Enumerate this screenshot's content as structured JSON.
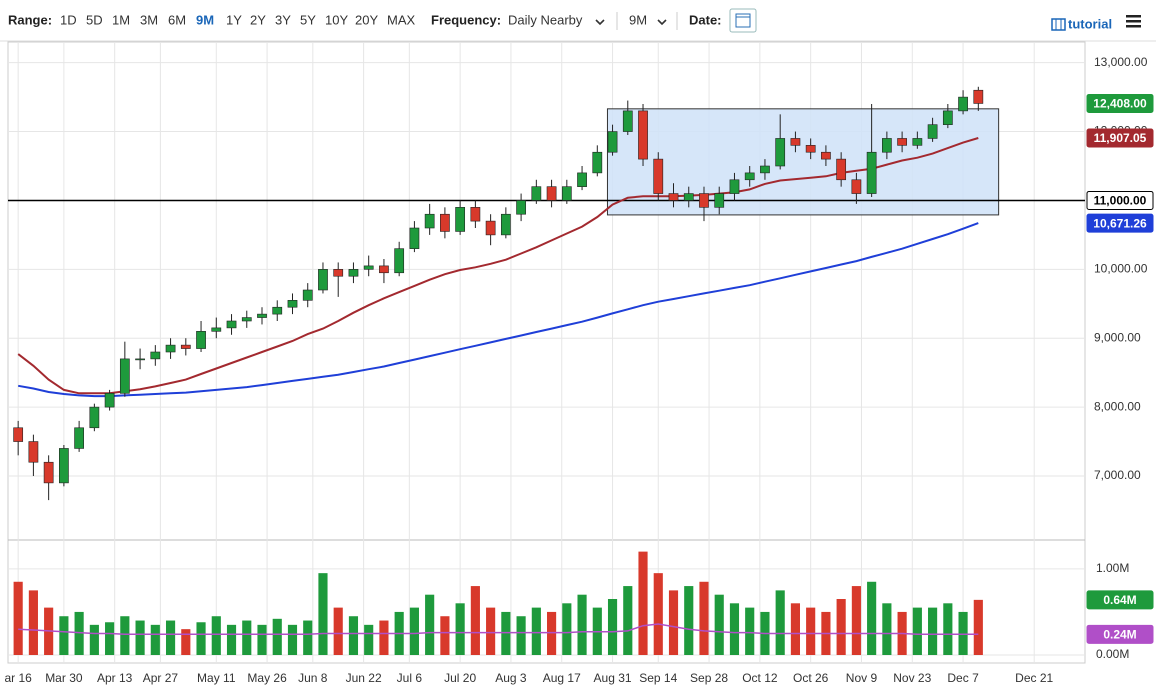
{
  "toolbar": {
    "range_label": "Range:",
    "ranges": [
      "1D",
      "5D",
      "1M",
      "3M",
      "6M",
      "9M",
      "1Y",
      "2Y",
      "3Y",
      "5Y",
      "10Y",
      "20Y",
      "MAX"
    ],
    "selected_range": 5,
    "frequency_label": "Frequency:",
    "frequency": "Daily Nearby",
    "period": "9M",
    "date_label": "Date:",
    "tutorial": "tutorial"
  },
  "chart_data": {
    "type": "candlestick",
    "x": [
      0,
      3,
      6,
      9,
      12,
      15,
      18,
      21,
      24,
      27,
      30,
      33,
      36,
      39,
      42,
      45,
      48,
      51,
      54,
      57,
      60,
      63,
      66,
      69,
      72,
      75,
      78,
      81,
      84,
      87,
      90,
      93,
      96,
      99,
      102,
      105,
      108,
      111,
      114,
      117,
      120,
      123,
      126,
      129,
      132,
      135,
      138,
      141,
      144,
      147,
      150,
      153,
      156,
      159,
      162,
      165,
      168,
      171,
      174,
      177,
      180,
      183,
      186,
      189
    ],
    "open": [
      7700,
      7500,
      7200,
      6900,
      7400,
      7700,
      8000,
      8200,
      8700,
      8700,
      8800,
      8900,
      8850,
      9100,
      9150,
      9250,
      9300,
      9350,
      9450,
      9550,
      9700,
      10000,
      9900,
      10000,
      10050,
      9950,
      10300,
      10600,
      10800,
      10550,
      10900,
      10700,
      10500,
      10800,
      11000,
      11200,
      11000,
      11200,
      11400,
      11700,
      12000,
      12300,
      11600,
      11100,
      11000,
      11100,
      10900,
      11100,
      11300,
      11400,
      11500,
      11900,
      11800,
      11700,
      11600,
      11300,
      11100,
      11700,
      11900,
      11800,
      11900,
      12100,
      12300,
      12600
    ],
    "high": [
      7800,
      7600,
      7300,
      7450,
      7800,
      8050,
      8250,
      8950,
      8850,
      8900,
      9000,
      9000,
      9250,
      9300,
      9350,
      9400,
      9450,
      9550,
      9650,
      9800,
      10100,
      10100,
      10100,
      10200,
      10150,
      10400,
      10700,
      10950,
      10900,
      11000,
      11000,
      10800,
      10900,
      11100,
      11300,
      11300,
      11300,
      11500,
      11800,
      12100,
      12450,
      12400,
      11700,
      11250,
      11200,
      11200,
      11200,
      11400,
      11500,
      11600,
      12250,
      12000,
      11900,
      11800,
      11700,
      11400,
      12400,
      12000,
      12000,
      12000,
      12200,
      12400,
      12600,
      12650
    ],
    "low": [
      7300,
      7000,
      6650,
      6850,
      7350,
      7650,
      7950,
      8150,
      8550,
      8600,
      8700,
      8750,
      8800,
      9000,
      9050,
      9150,
      9200,
      9250,
      9350,
      9450,
      9650,
      9600,
      9800,
      9900,
      9800,
      9900,
      10250,
      10500,
      10450,
      10500,
      10600,
      10350,
      10450,
      10700,
      10950,
      10900,
      10950,
      11150,
      11350,
      11650,
      11950,
      11500,
      11000,
      10900,
      10900,
      10700,
      10800,
      11000,
      11200,
      11300,
      11450,
      11700,
      11600,
      11500,
      11200,
      10950,
      11050,
      11600,
      11700,
      11750,
      11850,
      12050,
      12250,
      12300
    ],
    "close": [
      7500,
      7200,
      6900,
      7400,
      7700,
      8000,
      8200,
      8700,
      8700,
      8800,
      8900,
      8850,
      9100,
      9150,
      9250,
      9300,
      9350,
      9450,
      9550,
      9700,
      10000,
      9900,
      10000,
      10050,
      9950,
      10300,
      10600,
      10800,
      10550,
      10900,
      10700,
      10500,
      10800,
      11000,
      11200,
      11000,
      11200,
      11400,
      11700,
      12000,
      12300,
      11600,
      11100,
      11000,
      11100,
      10900,
      11100,
      11300,
      11400,
      11500,
      11900,
      11800,
      11700,
      11600,
      11300,
      11100,
      11700,
      11900,
      11800,
      11900,
      12100,
      12300,
      12500,
      12408
    ],
    "up_color": "#1e9a3c",
    "down_color": "#d8392b",
    "lines": [
      {
        "color": "#a3292f",
        "values": [
          8770,
          8600,
          8400,
          8250,
          8200,
          8200,
          8200,
          8230,
          8260,
          8300,
          8350,
          8400,
          8480,
          8560,
          8640,
          8720,
          8800,
          8880,
          8960,
          9060,
          9140,
          9250,
          9370,
          9480,
          9580,
          9670,
          9760,
          9850,
          9930,
          9990,
          10030,
          10080,
          10140,
          10230,
          10320,
          10420,
          10520,
          10620,
          10760,
          10940,
          11040,
          11060,
          11060,
          11060,
          11070,
          11080,
          11100,
          11120,
          11160,
          11240,
          11290,
          11310,
          11330,
          11350,
          11400,
          11430,
          11460,
          11520,
          11580,
          11620,
          11680,
          11760,
          11840,
          11907.05
        ],
        "label": {
          "value": 11907.05,
          "label": "11,907.05"
        }
      },
      {
        "color": "#1f3fd8",
        "values": [
          8310,
          8270,
          8220,
          8190,
          8170,
          8160,
          8160,
          8170,
          8180,
          8190,
          8200,
          8210,
          8230,
          8250,
          8270,
          8290,
          8320,
          8350,
          8380,
          8410,
          8440,
          8470,
          8510,
          8550,
          8590,
          8640,
          8690,
          8740,
          8790,
          8840,
          8890,
          8940,
          8990,
          9040,
          9090,
          9140,
          9190,
          9240,
          9300,
          9360,
          9420,
          9480,
          9530,
          9570,
          9610,
          9650,
          9690,
          9730,
          9770,
          9820,
          9870,
          9920,
          9970,
          10020,
          10070,
          10120,
          10180,
          10240,
          10300,
          10370,
          10440,
          10510,
          10590,
          10671.26
        ],
        "label": {
          "value": 10671.26,
          "label": "10,671.26"
        }
      }
    ],
    "last_label": {
      "value": 12408,
      "label": "12,408.00"
    },
    "hline": {
      "value": 11000,
      "label": "11,000.00",
      "color": "#000000"
    },
    "box": {
      "x": [
        116,
        193
      ],
      "y": [
        10790,
        12330
      ],
      "color": "#cfe2f8"
    },
    "xlim": [
      -2,
      210
    ],
    "xticks": [
      {
        "value": 0,
        "label": "ar 16"
      },
      {
        "value": 9,
        "label": "Mar 30"
      },
      {
        "value": 19,
        "label": "Apr 13"
      },
      {
        "value": 28,
        "label": "Apr 27"
      },
      {
        "value": 39,
        "label": "May 11"
      },
      {
        "value": 49,
        "label": "May 26"
      },
      {
        "value": 58,
        "label": "Jun 8"
      },
      {
        "value": 68,
        "label": "Jun 22"
      },
      {
        "value": 77,
        "label": "Jul 6"
      },
      {
        "value": 87,
        "label": "Jul 20"
      },
      {
        "value": 97,
        "label": "Aug 3"
      },
      {
        "value": 107,
        "label": "Aug 17"
      },
      {
        "value": 117,
        "label": "Aug 31"
      },
      {
        "value": 126,
        "label": "Sep 14"
      },
      {
        "value": 136,
        "label": "Sep 28"
      },
      {
        "value": 146,
        "label": "Oct 12"
      },
      {
        "value": 156,
        "label": "Oct 26"
      },
      {
        "value": 166,
        "label": "Nov 9"
      },
      {
        "value": 176,
        "label": "Nov 23"
      },
      {
        "value": 186,
        "label": "Dec 7"
      },
      {
        "value": 200,
        "label": "Dec 21"
      }
    ],
    "ylim": [
      6100,
      13300
    ],
    "yticks": [
      {
        "value": 7000,
        "label": "7,000.00"
      },
      {
        "value": 8000,
        "label": "8,000.00"
      },
      {
        "value": 9000,
        "label": "9,000.00"
      },
      {
        "value": 10000,
        "label": "10,000.00"
      },
      {
        "value": 11000,
        "label": "11,000.00"
      },
      {
        "value": 12000,
        "label": "12,000.00"
      },
      {
        "value": 13000,
        "label": "13,000.00"
      }
    ],
    "grid": true,
    "volume": {
      "values": [
        0.85,
        0.75,
        0.55,
        0.45,
        0.5,
        0.35,
        0.38,
        0.45,
        0.4,
        0.35,
        0.4,
        0.3,
        0.38,
        0.45,
        0.35,
        0.4,
        0.35,
        0.42,
        0.35,
        0.4,
        0.95,
        0.55,
        0.45,
        0.35,
        0.4,
        0.5,
        0.55,
        0.7,
        0.45,
        0.6,
        0.8,
        0.55,
        0.5,
        0.45,
        0.55,
        0.5,
        0.6,
        0.7,
        0.55,
        0.65,
        0.8,
        1.2,
        0.95,
        0.75,
        0.8,
        0.85,
        0.7,
        0.6,
        0.55,
        0.5,
        0.75,
        0.6,
        0.55,
        0.5,
        0.65,
        0.8,
        0.85,
        0.6,
        0.5,
        0.55,
        0.55,
        0.6,
        0.5,
        0.64
      ],
      "last_label": {
        "value": 0.64,
        "label": "0.64M"
      },
      "avg": {
        "color": "#b04fc8",
        "values": [
          0.3,
          0.29,
          0.28,
          0.27,
          0.26,
          0.25,
          0.25,
          0.24,
          0.24,
          0.24,
          0.24,
          0.24,
          0.24,
          0.24,
          0.24,
          0.24,
          0.24,
          0.24,
          0.24,
          0.24,
          0.25,
          0.25,
          0.25,
          0.25,
          0.25,
          0.25,
          0.25,
          0.26,
          0.26,
          0.26,
          0.26,
          0.26,
          0.26,
          0.26,
          0.26,
          0.26,
          0.26,
          0.27,
          0.27,
          0.27,
          0.28,
          0.34,
          0.36,
          0.33,
          0.3,
          0.28,
          0.27,
          0.26,
          0.26,
          0.25,
          0.25,
          0.25,
          0.25,
          0.25,
          0.25,
          0.25,
          0.25,
          0.25,
          0.25,
          0.24,
          0.24,
          0.24,
          0.24,
          0.24
        ],
        "label": {
          "value": 0.24,
          "label": "0.24M"
        }
      },
      "ylim": [
        0,
        1.3
      ],
      "yticks": [
        {
          "value": 1,
          "label": "1.00M"
        },
        {
          "value": 0,
          "label": "0.00M"
        }
      ]
    }
  }
}
